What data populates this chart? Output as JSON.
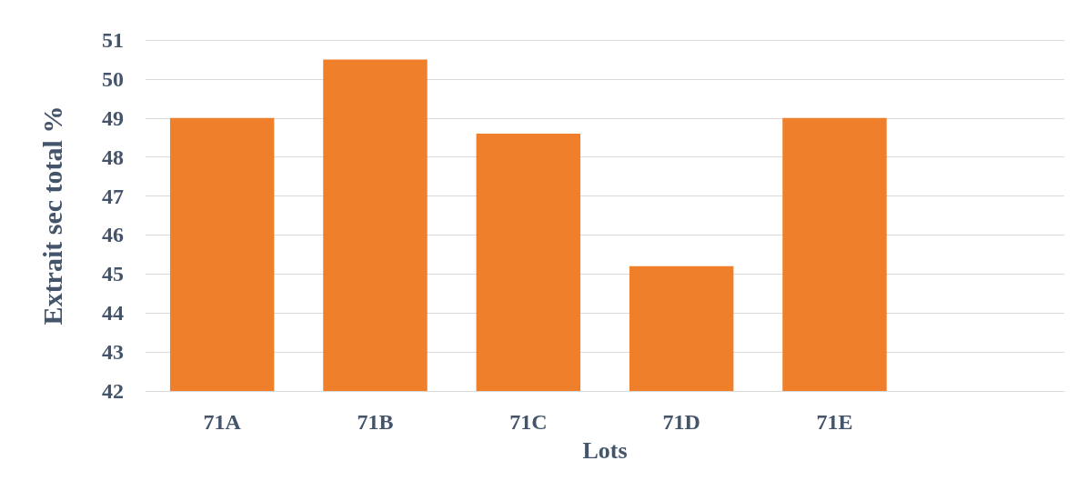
{
  "chart_data": {
    "type": "bar",
    "xlabel": "Lots",
    "ylabel": "Extrait sec total %",
    "categories": [
      "71A",
      "71B",
      "71C",
      "71D",
      "71E",
      null
    ],
    "values": [
      49.0,
      50.5,
      48.6,
      45.2,
      49.0,
      null
    ],
    "color": "#f07f2b",
    "ylim": [
      42,
      51
    ],
    "yticks": [
      42,
      43,
      44,
      45,
      46,
      47,
      48,
      49,
      50,
      51
    ],
    "grid": "y"
  }
}
